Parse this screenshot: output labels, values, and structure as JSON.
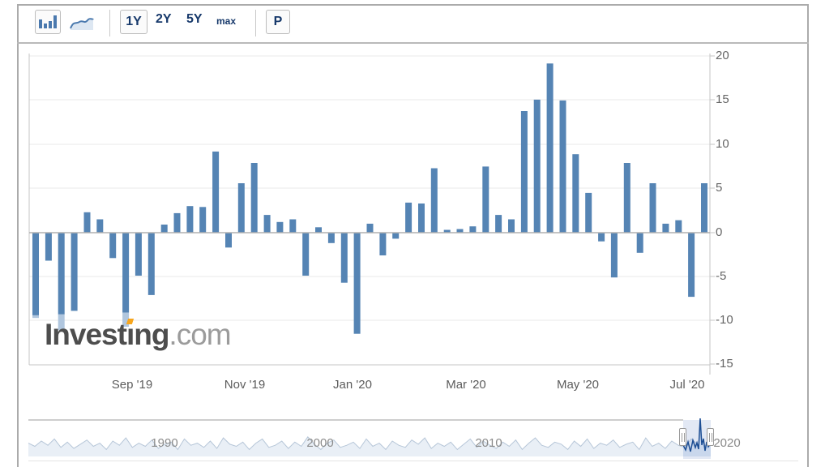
{
  "toolbar": {
    "chart_types": {
      "bar_icon": "bar-chart-icon",
      "line_icon": "area-chart-icon",
      "selected": "bar"
    },
    "range_buttons": {
      "one_year": "1Y",
      "two_year": "2Y",
      "five_year": "5Y",
      "max": "max",
      "selected": "1Y"
    },
    "p_label": "P"
  },
  "watermark": {
    "part1": "Invest",
    "dotless_i": "ı",
    "part3": "ng",
    "suffix": ".com"
  },
  "chart_data": {
    "type": "bar",
    "frequency": "weekly",
    "title": "",
    "xlabel": "",
    "ylabel": "",
    "ylim": [
      -15,
      20
    ],
    "grid": true,
    "bar_color": "#5584b4",
    "light_tip_color": "#b0c6de",
    "y_tick_labels": [
      "20",
      "15",
      "10",
      "5",
      "0",
      "-5",
      "-10",
      "-15"
    ],
    "y_ticks": [
      20,
      15,
      10,
      5,
      0,
      -5,
      -10,
      -15
    ],
    "x_tick_labels": [
      "Sep '19",
      "Nov '19",
      "Jan '20",
      "Mar '20",
      "May '20",
      "Jul '20"
    ],
    "values": [
      -9.7,
      -3.2,
      -11.1,
      -8.9,
      2.3,
      1.5,
      -2.9,
      -10.7,
      -4.9,
      -7.1,
      0.9,
      2.2,
      3.0,
      2.9,
      9.2,
      -1.7,
      5.6,
      7.9,
      2.0,
      1.2,
      1.5,
      -4.9,
      0.6,
      -1.2,
      -5.7,
      -11.5,
      1.0,
      -2.6,
      -0.7,
      3.4,
      3.3,
      7.3,
      0.3,
      0.4,
      0.7,
      7.5,
      2.0,
      1.5,
      13.8,
      15.1,
      19.2,
      15.0,
      8.9,
      4.5,
      -1.0,
      -5.1,
      7.9,
      -2.3,
      5.6,
      1.0,
      1.4,
      -7.3,
      5.6
    ],
    "light_tips": [
      {
        "index": 0,
        "from": -9.4
      },
      {
        "index": 2,
        "from": -9.3
      },
      {
        "index": 7,
        "from": -9.1
      }
    ],
    "navigator": {
      "year_labels": [
        "1990",
        "2000",
        "2010",
        "2020"
      ],
      "selected_range_label": "1Y",
      "squiggle": [
        8,
        5,
        10,
        6,
        12,
        4,
        9,
        3,
        7,
        11,
        5,
        8,
        2,
        10,
        6,
        13,
        4,
        8,
        5,
        11,
        3,
        7,
        9,
        2,
        12,
        6,
        8,
        4,
        10,
        3,
        13,
        7,
        5,
        9,
        2,
        8,
        12,
        4,
        6,
        10,
        3,
        9,
        5,
        14,
        7,
        2,
        8,
        11,
        4,
        6,
        9,
        3,
        12,
        5,
        8,
        2,
        10,
        6,
        4,
        11,
        7,
        13,
        3,
        8,
        5,
        9,
        2,
        7,
        12,
        4,
        10,
        6,
        3,
        9,
        5,
        11,
        2,
        8,
        13,
        6,
        4,
        9,
        7,
        2,
        10,
        5,
        12,
        3,
        8,
        6,
        11,
        4,
        7,
        9,
        2,
        13,
        5,
        8,
        3,
        10,
        6,
        4,
        12,
        7,
        5,
        9
      ],
      "selection_series": [
        [
          843,
          549
        ],
        [
          846,
          555
        ],
        [
          849,
          545
        ],
        [
          852,
          557
        ],
        [
          855,
          543
        ],
        [
          858,
          552
        ],
        [
          860,
          546
        ],
        [
          862,
          554
        ],
        [
          864,
          516
        ],
        [
          866,
          549
        ],
        [
          868,
          541
        ],
        [
          870,
          556
        ],
        [
          872,
          545
        ],
        [
          874,
          551
        ],
        [
          877,
          547
        ]
      ]
    },
    "colors": {
      "grid": "#e8e8e8",
      "zero_line": "#b0b0b0",
      "axis_border": "#c6c6c6",
      "navigator_line": "#b6c6d8",
      "navigator_fill": "#e9eff6",
      "selection_fill": "#c9d7ec",
      "selection_line": "#1d4e94",
      "accent_navy": "#17396b",
      "logo_orange": "#f7a61e"
    }
  }
}
